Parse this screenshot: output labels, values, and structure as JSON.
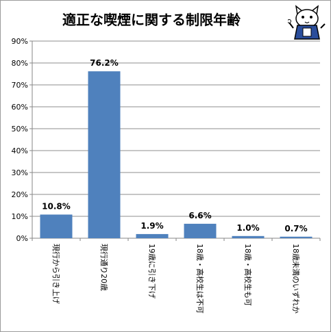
{
  "title": "適正な喫煙に関する制限年齢",
  "colors": {
    "bar": "#4f81bd",
    "grid": "#8c8c8c",
    "axis": "#868686"
  },
  "mascot": {
    "icon": "cat-mascot-icon"
  },
  "chart_data": {
    "type": "bar",
    "title": "適正な喫煙に関する制限年齢",
    "categories": [
      "現行から引き上げ",
      "現行通り20歳",
      "19歳に引き下げ",
      "18歳・高校生は不可",
      "18歳・高校生も可",
      "18歳未満のいずれか"
    ],
    "values": [
      10.8,
      76.2,
      1.9,
      6.6,
      1.0,
      0.7
    ],
    "data_labels": [
      "10.8%",
      "76.2%",
      "1.9%",
      "6.6%",
      "1.0%",
      "0.7%"
    ],
    "yticks": [
      "0%",
      "10%",
      "20%",
      "30%",
      "40%",
      "50%",
      "60%",
      "70%",
      "80%",
      "90%"
    ],
    "ylim": [
      0,
      90
    ],
    "xlabel": "",
    "ylabel": "",
    "grid": true
  }
}
